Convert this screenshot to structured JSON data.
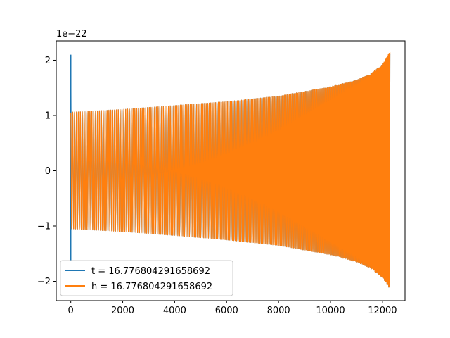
{
  "chart_data": {
    "type": "line",
    "title": "",
    "xlabel": "",
    "ylabel": "",
    "xlim": [
      -560,
      12870
    ],
    "ylim": [
      -2.35,
      2.35
    ],
    "y_offset_label": "1e−22",
    "x_ticks": [
      0,
      2000,
      4000,
      6000,
      8000,
      10000,
      12000
    ],
    "x_tick_labels": [
      "0",
      "2000",
      "4000",
      "6000",
      "8000",
      "10000",
      "12000"
    ],
    "y_ticks": [
      2,
      1,
      0,
      -1,
      -2
    ],
    "y_tick_labels": [
      "2",
      "1",
      "0",
      "−1",
      "−2"
    ],
    "grid": false,
    "legend_position": "lower-left",
    "series": [
      {
        "name": "t = 16.776804291658692",
        "color": "#1f77b4",
        "description_envelope": {
          "x": [
            0,
            15,
            30,
            60,
            2000,
            4000,
            6000,
            8000,
            10000,
            11000,
            11500,
            12000,
            12290
          ],
          "upper": [
            2.1,
            1.5,
            1.06,
            1.06,
            1.11,
            1.18,
            1.25,
            1.35,
            1.52,
            1.64,
            1.74,
            1.92,
            2.14
          ],
          "lower": [
            -1.63,
            -1.3,
            -1.05,
            -1.05,
            -1.1,
            -1.17,
            -1.25,
            -1.35,
            -1.52,
            -1.65,
            -1.75,
            -1.93,
            -2.14
          ]
        }
      },
      {
        "name": "h = 16.776804291658692",
        "color": "#ff7f0e",
        "description_envelope": {
          "x": [
            0,
            60,
            2000,
            4000,
            6000,
            8000,
            10000,
            11000,
            11500,
            12000,
            12290
          ],
          "upper": [
            1.06,
            1.06,
            1.11,
            1.18,
            1.25,
            1.35,
            1.52,
            1.64,
            1.74,
            1.92,
            2.16
          ],
          "lower": [
            -1.05,
            -1.05,
            -1.1,
            -1.17,
            -1.25,
            -1.35,
            -1.52,
            -1.65,
            -1.75,
            -1.93,
            -2.14
          ]
        }
      }
    ]
  }
}
